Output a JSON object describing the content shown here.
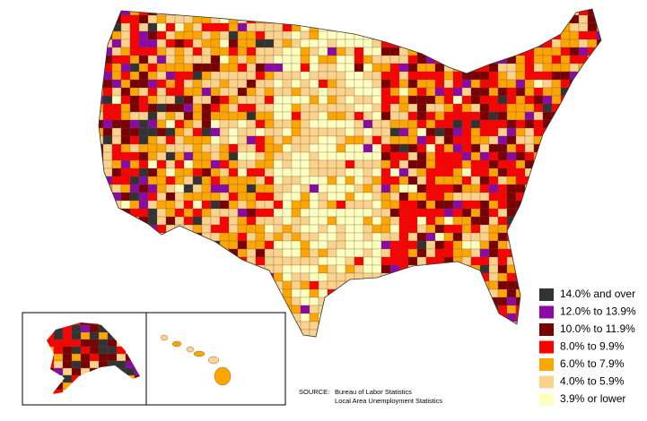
{
  "legend": {
    "items": [
      {
        "label": "14.0% and over",
        "color": "#333333"
      },
      {
        "label": "12.0% to 13.9%",
        "color": "#8b0aa5"
      },
      {
        "label": "10.0% to 11.9%",
        "color": "#7a0000"
      },
      {
        "label": "8.0% to 9.9%",
        "color": "#ff0000"
      },
      {
        "label": "6.0% to 7.9%",
        "color": "#ffa500"
      },
      {
        "label": "4.0% to 5.9%",
        "color": "#fdd28a"
      },
      {
        "label": "3.9% or lower",
        "color": "#ffffc0"
      }
    ]
  },
  "source": {
    "label": "SOURCE:",
    "lines": [
      "Bureau of Labor Statistics",
      "Local Area Unemployment Statistics"
    ]
  }
}
